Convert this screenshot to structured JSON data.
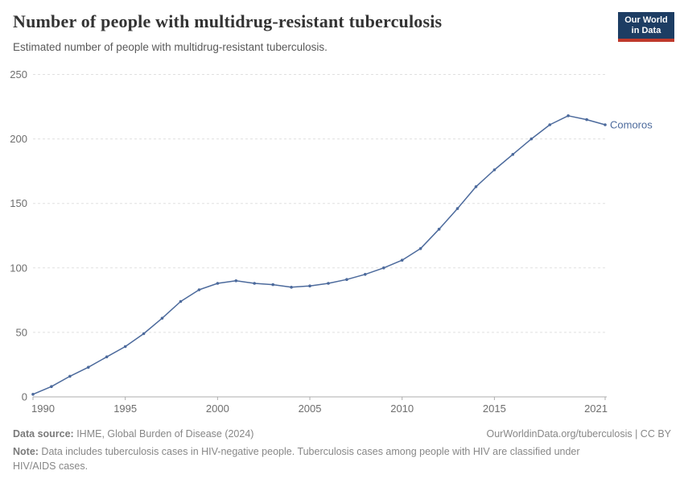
{
  "header": {
    "title": "Number of people with multidrug-resistant tuberculosis",
    "subtitle": "Estimated number of people with multidrug-resistant tuberculosis.",
    "logo": {
      "line1": "Our World",
      "line2": "in Data",
      "bg_color": "#1d3d63",
      "accent_color": "#c0392b"
    }
  },
  "chart_data": {
    "type": "line",
    "title": "Number of people with multidrug-resistant tuberculosis",
    "subtitle": "Estimated number of people with multidrug-resistant tuberculosis.",
    "x": [
      1990,
      1991,
      1992,
      1993,
      1994,
      1995,
      1996,
      1997,
      1998,
      1999,
      2000,
      2001,
      2002,
      2003,
      2004,
      2005,
      2006,
      2007,
      2008,
      2009,
      2010,
      2011,
      2012,
      2013,
      2014,
      2015,
      2016,
      2017,
      2018,
      2019,
      2020,
      2021
    ],
    "series": [
      {
        "name": "Comoros",
        "color": "#4c6a9c",
        "values": [
          2,
          8,
          16,
          23,
          31,
          39,
          49,
          61,
          74,
          83,
          88,
          90,
          88,
          87,
          85,
          86,
          88,
          91,
          95,
          100,
          106,
          115,
          130,
          146,
          163,
          176,
          188,
          200,
          211,
          218,
          215,
          211
        ]
      }
    ],
    "xlabel": "",
    "ylabel": "",
    "xlim": [
      1990,
      2021
    ],
    "ylim": [
      0,
      250
    ],
    "xticks": [
      1990,
      1995,
      2000,
      2005,
      2010,
      2015,
      2021
    ],
    "yticks": [
      0,
      50,
      100,
      150,
      200,
      250
    ],
    "grid": "horizontal-dashed",
    "legend_position": "line-end-label",
    "line_color": "#4c6a9c",
    "grid_color": "#e0e0e0",
    "axis_color": "#adadad",
    "tick_label_color": "#6e6e6e"
  },
  "footer": {
    "source_label": "Data source:",
    "source_text": " IHME, Global Burden of Disease (2024)",
    "license_text": "OurWorldinData.org/tuberculosis | CC BY",
    "note_label": "Note:",
    "note_text": " Data includes tuberculosis cases in HIV-negative people. Tuberculosis cases among people with HIV are classified under HIV/AIDS cases."
  }
}
